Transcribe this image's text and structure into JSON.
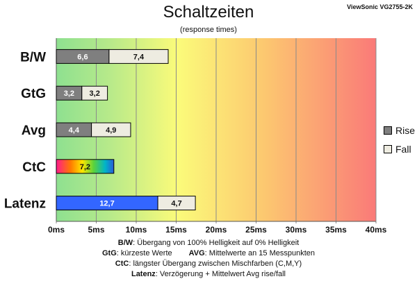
{
  "chart_data": {
    "type": "bar",
    "orientation": "horizontal",
    "stacked": true,
    "title": "Schaltzeiten",
    "subtitle": "(response times)",
    "watermark": "ViewSonic VG2755-2K",
    "xlim": [
      0,
      40
    ],
    "xticks": [
      "0ms",
      "5ms",
      "10ms",
      "15ms",
      "20ms",
      "25ms",
      "30ms",
      "35ms",
      "40ms"
    ],
    "categories": [
      "B/W",
      "GtG",
      "Avg",
      "CtC",
      "Latenz"
    ],
    "series": [
      {
        "name": "Rise",
        "values": [
          6.6,
          3.2,
          4.4,
          null,
          null
        ],
        "labels": [
          "6,6",
          "3,2",
          "4,4",
          "",
          ""
        ],
        "color": "#7f7f7f"
      },
      {
        "name": "Fall",
        "values": [
          7.4,
          3.2,
          4.9,
          null,
          null
        ],
        "labels": [
          "7,4",
          "3,2",
          "4,9",
          "",
          ""
        ],
        "color": "#eeece1"
      }
    ],
    "special": [
      {
        "category": "CtC",
        "segments": [
          {
            "value": 7.2,
            "label": "7,2",
            "fill": "rainbow"
          }
        ]
      },
      {
        "category": "Latenz",
        "segments": [
          {
            "value": 12.7,
            "label": "12,7",
            "fill": "#3366ff"
          },
          {
            "value": 4.7,
            "label": "4,7",
            "fill": "#eeece1"
          }
        ]
      }
    ],
    "background": "gradient green-yellow-red",
    "grid": true,
    "legend": "right"
  },
  "legend": {
    "rise": "Rise",
    "fall": "Fall"
  },
  "footnotes": {
    "bw_key": "B/W",
    "bw_text": ":  Übergang von 100% Helligkeit auf 0% Helligkeit",
    "gtg_key": "GtG",
    "gtg_text": ": kürzeste  Werte",
    "avg_key": "AVG",
    "avg_text": ":  Mittelwerte  an 15 Messpunkten",
    "ctc_key": "CtC",
    "ctc_text": ": längster Übergang  zwischen Mischfarben  (C,M,Y)",
    "lat_key": "Latenz",
    "lat_text": ": Verzögerung  + Mittelwert Avg rise/fall"
  }
}
